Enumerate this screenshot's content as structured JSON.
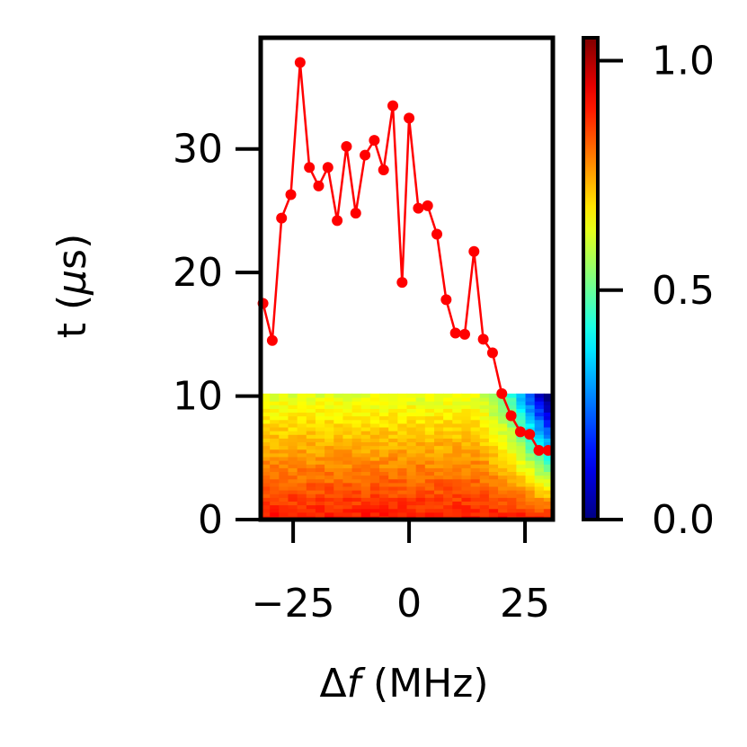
{
  "chart_data": {
    "type": "heatmap",
    "xlabel_prefix": "Δ",
    "xlabel_var": "f",
    "xlabel_unit": " (MHz)",
    "ylabel_prefix": "t (",
    "ylabel_var": "μ",
    "ylabel_unit": "s)",
    "xlim": [
      -32,
      31
    ],
    "ylim": [
      0,
      39
    ],
    "x_ticks": [
      -25,
      0,
      25
    ],
    "x_tick_labels": [
      "−25",
      "0",
      "25"
    ],
    "y_ticks": [
      0,
      10,
      20,
      30
    ],
    "y_tick_labels": [
      "0",
      "10",
      "20",
      "30"
    ],
    "heatmap": {
      "x_range": [
        -32,
        31
      ],
      "y_range": [
        0,
        10.2
      ],
      "colormap": "jet",
      "vmin": 0.0,
      "vmax": 1.05,
      "description_values_hint": "values near 0.9 at t=0 decaying to about 0.6 at t=10; low values (about 0.25) at large positive detuning and late times"
    },
    "colorbar": {
      "ticks": [
        0.0,
        0.5,
        1.0
      ],
      "tick_labels": [
        "0.0",
        "0.5",
        "1.0"
      ],
      "range": [
        0,
        1.05
      ]
    },
    "series": [
      {
        "color": "#ff0000",
        "x": [
          -31.5,
          -29.5,
          -27.5,
          -25.5,
          -23.5,
          -21.5,
          -19.5,
          -17.5,
          -15.5,
          -13.5,
          -11.5,
          -9.5,
          -7.5,
          -5.5,
          -3.5,
          -1.5,
          0.0,
          2.0,
          4.0,
          6.0,
          8.0,
          10.0,
          12.0,
          14.0,
          16.0,
          18.0,
          20.0,
          22.0,
          24.0,
          26.0,
          28.0,
          30.0
        ],
        "y": [
          17.5,
          14.5,
          24.4,
          26.3,
          37.0,
          28.5,
          27.0,
          28.5,
          24.2,
          30.2,
          24.8,
          29.5,
          30.7,
          28.3,
          33.5,
          19.2,
          32.5,
          25.2,
          25.4,
          23.1,
          17.8,
          15.1,
          15.0,
          21.7,
          14.6,
          13.5,
          10.2,
          8.4,
          7.1,
          6.9,
          5.6,
          5.6
        ]
      }
    ]
  }
}
